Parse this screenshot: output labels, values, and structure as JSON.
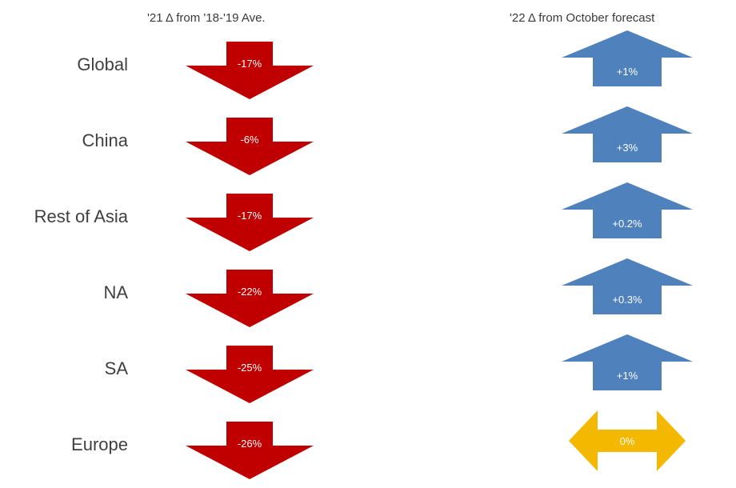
{
  "headers": {
    "left": "'21 Δ from '18-'19 Ave.",
    "right": "'22 Δ from October forecast"
  },
  "colors": {
    "down": "#c00000",
    "up": "#4f81bd",
    "flat": "#f5b800"
  },
  "rows": [
    {
      "region": "Global",
      "change_2021": "-17%",
      "change_2022": "+1%",
      "direction_2022": "up"
    },
    {
      "region": "China",
      "change_2021": "-6%",
      "change_2022": "+3%",
      "direction_2022": "up"
    },
    {
      "region": "Rest of Asia",
      "change_2021": "-17%",
      "change_2022": "+0.2%",
      "direction_2022": "up"
    },
    {
      "region": "NA",
      "change_2021": "-22%",
      "change_2022": "+0.3%",
      "direction_2022": "up"
    },
    {
      "region": "SA",
      "change_2021": "-25%",
      "change_2022": "+1%",
      "direction_2022": "up"
    },
    {
      "region": "Europe",
      "change_2021": "-26%",
      "change_2022": "0%",
      "direction_2022": "flat"
    }
  ]
}
